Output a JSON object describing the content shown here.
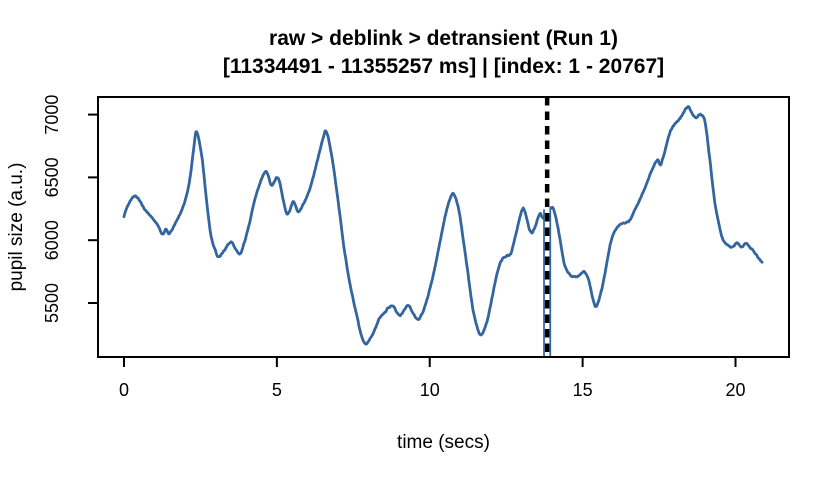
{
  "figure": {
    "title_line1": "raw > deblink > detransient (Run 1)",
    "title_line2": "[11334491 - 11355257 ms] | [index: 1 - 20767]",
    "xlabel": "time (secs)",
    "ylabel": "pupil size (a.u.)"
  },
  "chart_data": {
    "type": "line",
    "title": "raw > deblink > detransient (Run 1)",
    "subtitle": "[11334491 - 11355257 ms] | [index: 1 - 20767]",
    "xlabel": "time (secs)",
    "ylabel": "pupil size (a.u.)",
    "x_ticks": [
      0,
      5,
      10,
      15,
      20
    ],
    "y_ticks": [
      5500,
      6000,
      6500,
      7000
    ],
    "xlim": [
      -0.85,
      21.75
    ],
    "ylim": [
      5070,
      7140
    ],
    "grid": false,
    "legend": null,
    "background": "#ffffff",
    "box_color": "#000000",
    "line_color": "#33669e",
    "noise_amplitude": 12,
    "marker_line": {
      "x": 13.84,
      "style": "dashed",
      "color": "#000000",
      "gap_color": "#ffffff",
      "underlay_color": "#33669e",
      "underlay_from_value": 6245
    },
    "series": [
      {
        "name": "pupil_size",
        "points": [
          [
            0.0,
            6190
          ],
          [
            0.15,
            6290
          ],
          [
            0.35,
            6350
          ],
          [
            0.5,
            6320
          ],
          [
            0.63,
            6265
          ],
          [
            0.8,
            6210
          ],
          [
            0.95,
            6170
          ],
          [
            1.1,
            6120
          ],
          [
            1.26,
            6045
          ],
          [
            1.37,
            6090
          ],
          [
            1.48,
            6050
          ],
          [
            1.7,
            6145
          ],
          [
            1.85,
            6220
          ],
          [
            2.0,
            6315
          ],
          [
            2.15,
            6480
          ],
          [
            2.3,
            6770
          ],
          [
            2.38,
            6865
          ],
          [
            2.55,
            6660
          ],
          [
            2.7,
            6315
          ],
          [
            2.85,
            6030
          ],
          [
            3.0,
            5910
          ],
          [
            3.1,
            5870
          ],
          [
            3.3,
            5925
          ],
          [
            3.5,
            5985
          ],
          [
            3.65,
            5930
          ],
          [
            3.8,
            5890
          ],
          [
            3.95,
            5995
          ],
          [
            4.1,
            6130
          ],
          [
            4.3,
            6340
          ],
          [
            4.62,
            6545
          ],
          [
            4.83,
            6440
          ],
          [
            5.05,
            6490
          ],
          [
            5.32,
            6215
          ],
          [
            5.54,
            6305
          ],
          [
            5.7,
            6225
          ],
          [
            5.9,
            6305
          ],
          [
            6.1,
            6425
          ],
          [
            6.3,
            6610
          ],
          [
            6.5,
            6800
          ],
          [
            6.62,
            6865
          ],
          [
            6.8,
            6660
          ],
          [
            7.0,
            6320
          ],
          [
            7.2,
            5935
          ],
          [
            7.4,
            5640
          ],
          [
            7.6,
            5415
          ],
          [
            7.75,
            5255
          ],
          [
            7.9,
            5175
          ],
          [
            8.05,
            5215
          ],
          [
            8.2,
            5285
          ],
          [
            8.35,
            5375
          ],
          [
            8.5,
            5415
          ],
          [
            8.65,
            5460
          ],
          [
            8.8,
            5475
          ],
          [
            9.0,
            5400
          ],
          [
            9.15,
            5440
          ],
          [
            9.3,
            5480
          ],
          [
            9.45,
            5420
          ],
          [
            9.6,
            5370
          ],
          [
            9.75,
            5415
          ],
          [
            9.9,
            5520
          ],
          [
            10.1,
            5705
          ],
          [
            10.3,
            5945
          ],
          [
            10.5,
            6185
          ],
          [
            10.65,
            6320
          ],
          [
            10.78,
            6370
          ],
          [
            10.95,
            6240
          ],
          [
            11.1,
            6000
          ],
          [
            11.25,
            5735
          ],
          [
            11.4,
            5470
          ],
          [
            11.55,
            5310
          ],
          [
            11.68,
            5245
          ],
          [
            11.85,
            5335
          ],
          [
            12.0,
            5495
          ],
          [
            12.2,
            5735
          ],
          [
            12.35,
            5840
          ],
          [
            12.5,
            5875
          ],
          [
            12.65,
            5895
          ],
          [
            12.8,
            6030
          ],
          [
            13.0,
            6225
          ],
          [
            13.1,
            6235
          ],
          [
            13.3,
            6065
          ],
          [
            13.45,
            6110
          ],
          [
            13.6,
            6210
          ],
          [
            13.72,
            6175
          ],
          [
            13.85,
            6240
          ],
          [
            13.95,
            6255
          ],
          [
            14.05,
            6250
          ],
          [
            14.2,
            6090
          ],
          [
            14.4,
            5815
          ],
          [
            14.55,
            5735
          ],
          [
            14.7,
            5710
          ],
          [
            14.9,
            5720
          ],
          [
            15.05,
            5750
          ],
          [
            15.2,
            5680
          ],
          [
            15.35,
            5520
          ],
          [
            15.45,
            5475
          ],
          [
            15.6,
            5585
          ],
          [
            15.75,
            5760
          ],
          [
            15.9,
            5960
          ],
          [
            16.05,
            6070
          ],
          [
            16.2,
            6120
          ],
          [
            16.4,
            6140
          ],
          [
            16.55,
            6160
          ],
          [
            16.7,
            6240
          ],
          [
            16.9,
            6335
          ],
          [
            17.1,
            6455
          ],
          [
            17.3,
            6575
          ],
          [
            17.45,
            6640
          ],
          [
            17.55,
            6600
          ],
          [
            17.7,
            6720
          ],
          [
            17.85,
            6855
          ],
          [
            18.0,
            6920
          ],
          [
            18.15,
            6960
          ],
          [
            18.3,
            7015
          ],
          [
            18.45,
            7060
          ],
          [
            18.6,
            7005
          ],
          [
            18.7,
            6975
          ],
          [
            18.85,
            7000
          ],
          [
            19.0,
            6945
          ],
          [
            19.15,
            6665
          ],
          [
            19.3,
            6345
          ],
          [
            19.45,
            6135
          ],
          [
            19.6,
            6000
          ],
          [
            19.75,
            5960
          ],
          [
            19.9,
            5945
          ],
          [
            20.05,
            5980
          ],
          [
            20.2,
            5945
          ],
          [
            20.35,
            5975
          ],
          [
            20.5,
            5935
          ],
          [
            20.65,
            5895
          ],
          [
            20.8,
            5840
          ],
          [
            20.87,
            5825
          ]
        ]
      }
    ]
  }
}
